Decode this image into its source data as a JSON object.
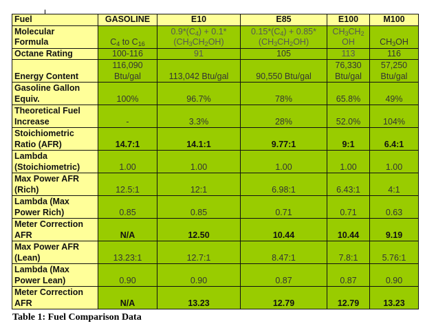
{
  "table": {
    "headers": [
      "Fuel",
      "GASOLINE",
      "E10",
      "E85",
      "E100",
      "M100"
    ],
    "rows": [
      {
        "label": "Molecular Formula",
        "values": [
          "C4 to C16",
          "0.9*(C4) + 0.1* (CH3CH2OH)",
          "0.15*(C4) + 0.85* (CH3CH2OH)",
          "CH3CH2 OH",
          "CH3OH"
        ],
        "bold": false
      },
      {
        "label": "Octane Rating",
        "values": [
          "100-116",
          "91",
          "105",
          "113",
          "116"
        ],
        "bold": false
      },
      {
        "label": "Energy Content",
        "values": [
          "116,090 Btu/gal",
          "113,042 Btu/gal",
          "90,550 Btu/gal",
          "76,330 Btu/gal",
          "57,250 Btu/gal"
        ],
        "bold": false
      },
      {
        "label": "Gasoline Gallon Equiv.",
        "values": [
          "100%",
          "96.7%",
          "78%",
          "65.8%",
          "49%"
        ],
        "bold": false
      },
      {
        "label": "Theoretical Fuel Increase",
        "values": [
          "-",
          "3.3%",
          "28%",
          "52.0%",
          "104%"
        ],
        "bold": false
      },
      {
        "label": "Stoichiometric Ratio (AFR)",
        "values": [
          "14.7:1",
          "14.1:1",
          "9.77:1",
          "9:1",
          "6.4:1"
        ],
        "bold": true
      },
      {
        "label": "Lambda (Stoichiometric)",
        "values": [
          "1.00",
          "1.00",
          "1.00",
          "1.00",
          "1.00"
        ],
        "bold": false
      },
      {
        "label": "Max Power AFR (Rich)",
        "values": [
          "12.5:1",
          "12:1",
          "6.98:1",
          "6.43:1",
          "4:1"
        ],
        "bold": false
      },
      {
        "label": "Lambda (Max Power Rich)",
        "values": [
          "0.85",
          "0.85",
          "0.71",
          "0.71",
          "0.63"
        ],
        "bold": false
      },
      {
        "label": "Meter Correction AFR",
        "values": [
          "N/A",
          "12.50",
          "10.44",
          "10.44",
          "9.19"
        ],
        "bold": true
      },
      {
        "label": "Max Power AFR (Lean)",
        "values": [
          "13.23:1",
          "12.7:1",
          "8.47:1",
          "7.8:1",
          "5.76:1"
        ],
        "bold": false
      },
      {
        "label": "Lambda (Max Power Lean)",
        "values": [
          "0.90",
          "0.90",
          "0.87",
          "0.87",
          "0.90"
        ],
        "bold": false
      },
      {
        "label": "Meter Correction AFR",
        "values": [
          "N/A",
          "13.23",
          "12.79",
          "12.79",
          "13.23"
        ],
        "bold": true
      }
    ]
  },
  "formula_parts": {
    "label_line1": "Molecular",
    "label_line2": "Formula",
    "gasoline": {
      "a": "C",
      "a_sub": "4",
      "b": " to C",
      "b_sub": "16"
    },
    "e10": {
      "l1a": "0.9*(C",
      "l1sub": "4",
      "l1b": ") + 0.1*",
      "l2a": "(CH",
      "l2sub1": "3",
      "l2b": "CH",
      "l2sub2": "2",
      "l2c": "OH)"
    },
    "e85": {
      "l1a": "0.15*(C",
      "l1sub": "4",
      "l1b": ") + 0.85*",
      "l2a": "(CH",
      "l2sub1": "3",
      "l2b": "CH",
      "l2sub2": "2",
      "l2c": "OH)"
    },
    "e100": {
      "l1a": "CH",
      "l1sub1": "3",
      "l1b": "CH",
      "l1sub2": "2",
      "l2": "OH"
    },
    "m100": {
      "a": "CH",
      "sub": "3",
      "b": "OH"
    }
  },
  "energy_parts": {
    "gasoline_l1": "116,090",
    "gasoline_l2": "Btu/gal",
    "e100_l1": "76,330",
    "e100_l2": "Btu/gal",
    "m100_l1": "57,250",
    "m100_l2": "Btu/gal"
  },
  "labels_split": [
    [
      "Gasoline Gallon",
      "Equiv."
    ],
    [
      "Theoretical Fuel",
      "Increase"
    ],
    [
      "Stoichiometric",
      "Ratio (AFR)"
    ],
    [
      "Lambda",
      "(Stoichiometric)"
    ],
    [
      "Max Power AFR",
      "(Rich)"
    ],
    [
      "Lambda (Max",
      "Power Rich)"
    ],
    [
      "Meter Correction",
      "AFR"
    ],
    [
      "Max Power AFR",
      "(Lean)"
    ],
    [
      "Lambda (Max",
      "Power Lean)"
    ],
    [
      "Meter Correction",
      "AFR"
    ]
  ],
  "caption": "Table 1: Fuel Comparison Data",
  "colors": {
    "header_bg": "#ffff99",
    "cell_bg": "#99cc00",
    "border": "#111111"
  }
}
